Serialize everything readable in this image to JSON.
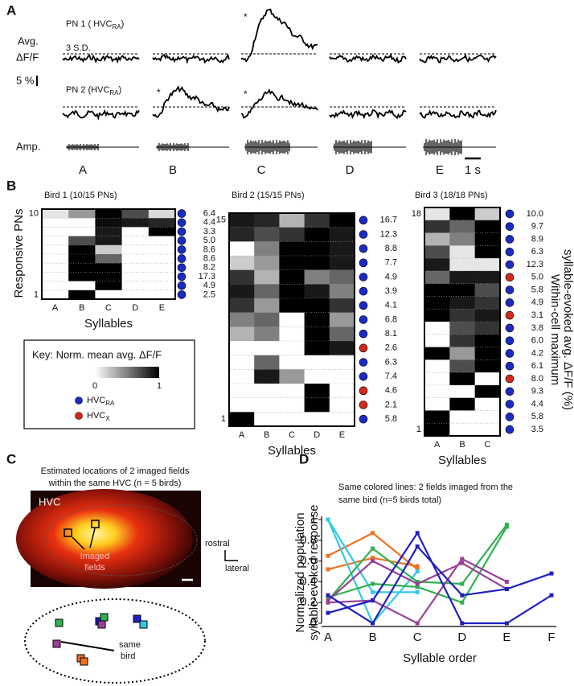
{
  "panel_a": {
    "label": "A",
    "pn1": {
      "text": "PN 1 ( HVC",
      "sub": "RA",
      "end": ")"
    },
    "ylabel": [
      "Avg.",
      "ΔF/F"
    ],
    "threshold": "3 S.D.",
    "scale": "5 %",
    "pn2": {
      "text": "PN 2  (HVC",
      "sub": "RA",
      "end": ")"
    },
    "amp": "Amp.",
    "asterisk": "*",
    "syllables": [
      "A",
      "B",
      "C",
      "D",
      "E"
    ],
    "time_scale": "1 s"
  },
  "panel_b": {
    "label": "B",
    "ylabel": "Responsive PNs",
    "xlabel": "Syllables",
    "right_label": [
      "Within-cell maximum",
      "syllable-evoked avg. ΔF/F (%)"
    ],
    "birds": [
      {
        "title": "Bird 1 (10/15 PNs)",
        "top": "10",
        "bottom": "1",
        "syllables": [
          "A",
          "B",
          "C",
          "D",
          "E"
        ],
        "cells": [
          [
            0.1,
            0.4,
            1,
            0.7,
            0.15
          ],
          [
            0,
            0,
            0.95,
            0.9,
            0.85
          ],
          [
            0,
            0,
            0.9,
            0,
            1
          ],
          [
            0,
            0.7,
            0.9,
            0,
            0
          ],
          [
            0,
            1,
            0.2,
            0,
            0
          ],
          [
            0,
            1,
            0.6,
            0,
            0
          ],
          [
            0,
            1,
            1,
            0,
            0
          ],
          [
            0,
            1,
            1,
            0,
            0
          ],
          [
            0,
            0,
            1,
            0,
            0
          ],
          [
            0,
            1,
            0,
            0,
            0
          ]
        ],
        "dot_colors": [
          "#1a2bc4",
          "#1a2bc4",
          "#1a2bc4",
          "#1a2bc4",
          "#1a2bc4",
          "#1a2bc4",
          "#1a2bc4",
          "#1a2bc4",
          "#1a2bc4",
          "#1a2bc4"
        ],
        "max_values": [
          "6.4",
          "4.4",
          "3.3",
          "5.0",
          "8.6",
          "8.6",
          "8.2",
          "17.3",
          "4.9",
          "2.5"
        ]
      },
      {
        "title": "Bird 2 (15/15 PNs)",
        "top": "15",
        "bottom": "1",
        "syllables": [
          "A",
          "B",
          "C",
          "D",
          "E"
        ],
        "cells": [
          [
            0.9,
            0.85,
            0.3,
            0.8,
            1
          ],
          [
            0.85,
            0.7,
            0.8,
            1,
            0.9
          ],
          [
            0,
            0.5,
            1,
            1,
            0.9
          ],
          [
            0.2,
            0.4,
            1,
            1,
            0.9
          ],
          [
            0.8,
            0.3,
            1,
            0.5,
            0.6
          ],
          [
            0.9,
            0.6,
            1,
            0.9,
            0.5
          ],
          [
            0.8,
            0.4,
            1,
            1,
            0.8
          ],
          [
            0.5,
            0.6,
            0,
            1,
            0.4
          ],
          [
            0.3,
            0.5,
            0,
            1,
            0.6
          ],
          [
            0,
            0,
            0,
            1,
            0.9
          ],
          [
            0,
            0.6,
            0,
            0,
            0
          ],
          [
            0,
            0.9,
            0.4,
            0,
            0
          ],
          [
            0,
            0,
            0,
            1,
            0
          ],
          [
            0,
            0,
            0,
            1,
            0
          ],
          [
            1,
            0,
            0,
            0,
            0
          ]
        ],
        "dot_colors": [
          "#1a2bc4",
          "#1a2bc4",
          "#1a2bc4",
          "#1a2bc4",
          "#1a2bc4",
          "#1a2bc4",
          "#1a2bc4",
          "#1a2bc4",
          "#1a2bc4",
          "#d42a1a",
          "#1a2bc4",
          "#1a2bc4",
          "#d42a1a",
          "#d42a1a",
          "#1a2bc4"
        ],
        "max_values": [
          "16.7",
          "12.3",
          "8.8",
          "7.7",
          "4.9",
          "3.9",
          "4.1",
          "6.8",
          "8.1",
          "2.6",
          "6.3",
          "7.4",
          "4.6",
          "2.1",
          "5.8"
        ]
      },
      {
        "title": "Bird 3 (18/18 PNs)",
        "top": "18",
        "bottom": "1",
        "syllables": [
          "A",
          "B",
          "C"
        ],
        "cells": [
          [
            0.1,
            1,
            0.2
          ],
          [
            0.8,
            0.6,
            1
          ],
          [
            0.3,
            0.5,
            1
          ],
          [
            0.7,
            0.1,
            1
          ],
          [
            0.9,
            0.1,
            0.1
          ],
          [
            0.6,
            0.9,
            0.9
          ],
          [
            1,
            1,
            0.7
          ],
          [
            1,
            0.9,
            0.8
          ],
          [
            1,
            0.8,
            0.9
          ],
          [
            0,
            0.7,
            0.8
          ],
          [
            0,
            0.8,
            1
          ],
          [
            1,
            0.4,
            1
          ],
          [
            0,
            0.7,
            1
          ],
          [
            0,
            1,
            0
          ],
          [
            0,
            0,
            1
          ],
          [
            0,
            1,
            0
          ],
          [
            1,
            0,
            0
          ],
          [
            1,
            0,
            0
          ]
        ],
        "dot_colors": [
          "#1a2bc4",
          "#1a2bc4",
          "#1a2bc4",
          "#1a2bc4",
          "#1a2bc4",
          "#d42a1a",
          "#1a2bc4",
          "#1a2bc4",
          "#d42a1a",
          "#1a2bc4",
          "#1a2bc4",
          "#1a2bc4",
          "#1a2bc4",
          "#d42a1a",
          "#1a2bc4",
          "#1a2bc4",
          "#1a2bc4",
          "#1a2bc4"
        ],
        "max_values": [
          "10.0",
          "9.7",
          "8.9",
          "6.3",
          "12.3",
          "5.0",
          "5.8",
          "4.9",
          "3.1",
          "3.8",
          "6.0",
          "4.2",
          "6.1",
          "8.0",
          "9.3",
          "4.4",
          "5.8",
          "3.5"
        ]
      }
    ],
    "key": {
      "title": "Key: Norm. mean avg. ΔF/F",
      "range": [
        0,
        1
      ],
      "ra": {
        "text": "HVC",
        "sub": "RA",
        "color": "#1a2bc4"
      },
      "x": {
        "text": "HVC",
        "sub": "X",
        "color": "#d42a1a"
      }
    }
  },
  "panel_c": {
    "label": "C",
    "title": [
      "Estimated locations of 2 imaged fields",
      "within the same HVC (n = 5 birds)"
    ],
    "region": "HVC",
    "fields": [
      "Imaged",
      "fields"
    ],
    "rostral": "rostral",
    "lateral": "lateral",
    "same_bird": [
      "same",
      "bird"
    ]
  },
  "chart_data": {
    "type": "line",
    "label": "D",
    "note": [
      "Same colored lines: 2 fields imaged from the",
      "same bird (n=5 birds total)"
    ],
    "ylabel": [
      "Normalized population",
      "syllable-evoked response"
    ],
    "xlabel": "Syllable order",
    "categories": [
      "A",
      "B",
      "C",
      "D",
      "E",
      "F"
    ],
    "ylim": [
      0,
      1
    ],
    "yticks": [
      0,
      0.2,
      0.4,
      0.6,
      0.8,
      1
    ],
    "series": [
      {
        "color": "#f07020",
        "values": [
          0.65,
          0.87,
          0.52,
          null,
          null,
          null
        ]
      },
      {
        "color": "#f07020",
        "values": [
          0.52,
          0.63,
          0.55,
          null,
          null,
          null
        ]
      },
      {
        "color": "#30c8e8",
        "values": [
          1,
          0,
          0.5,
          null,
          null,
          null
        ]
      },
      {
        "color": "#30c8e8",
        "values": [
          1,
          0.3,
          0.3,
          null,
          null,
          null
        ]
      },
      {
        "color": "#30b050",
        "values": [
          0.22,
          0.72,
          0.4,
          0.38,
          0.95,
          null
        ]
      },
      {
        "color": "#30b050",
        "values": [
          0.25,
          0.38,
          0.35,
          0.2,
          0.93,
          null
        ]
      },
      {
        "color": "#984098",
        "values": [
          0.2,
          0.22,
          0,
          0.62,
          0.4,
          null
        ]
      },
      {
        "color": "#984098",
        "values": [
          0.22,
          0.6,
          0.38,
          0.58,
          0.33,
          null
        ]
      },
      {
        "color": "#2020c0",
        "values": [
          0.1,
          0.22,
          0.87,
          0,
          0,
          0.27
        ]
      },
      {
        "color": "#2020c0",
        "values": [
          0.27,
          0,
          0.74,
          0.27,
          0.33,
          0.48
        ]
      }
    ]
  }
}
